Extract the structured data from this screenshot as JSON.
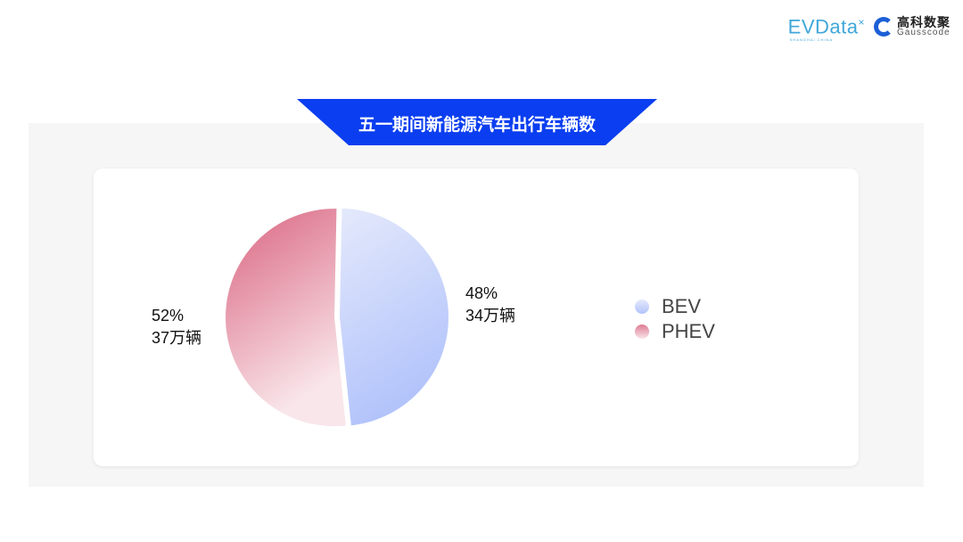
{
  "logos": {
    "evdata": "EVData",
    "evdata_sub": "SHANGHAI CHINA",
    "gauss_cn": "高科数聚",
    "gauss_en": "Gausscode"
  },
  "title": "五一期间新能源汽车出行车辆数",
  "chart_data": {
    "type": "pie",
    "title": "五一期间新能源汽车出行车辆数",
    "legend_position": "right",
    "slices": [
      {
        "name": "BEV",
        "percent": 48,
        "value_label": "34万辆",
        "percent_label": "48%",
        "color_top": "#e4e9fb",
        "color_bottom": "#b2c3fb"
      },
      {
        "name": "PHEV",
        "percent": 52,
        "value_label": "37万辆",
        "percent_label": "52%",
        "color_top": "#df7b93",
        "color_bottom": "#f9e6ea"
      }
    ]
  },
  "colors": {
    "banner": "#0a3ef0",
    "panel": "#f7f6f6"
  }
}
